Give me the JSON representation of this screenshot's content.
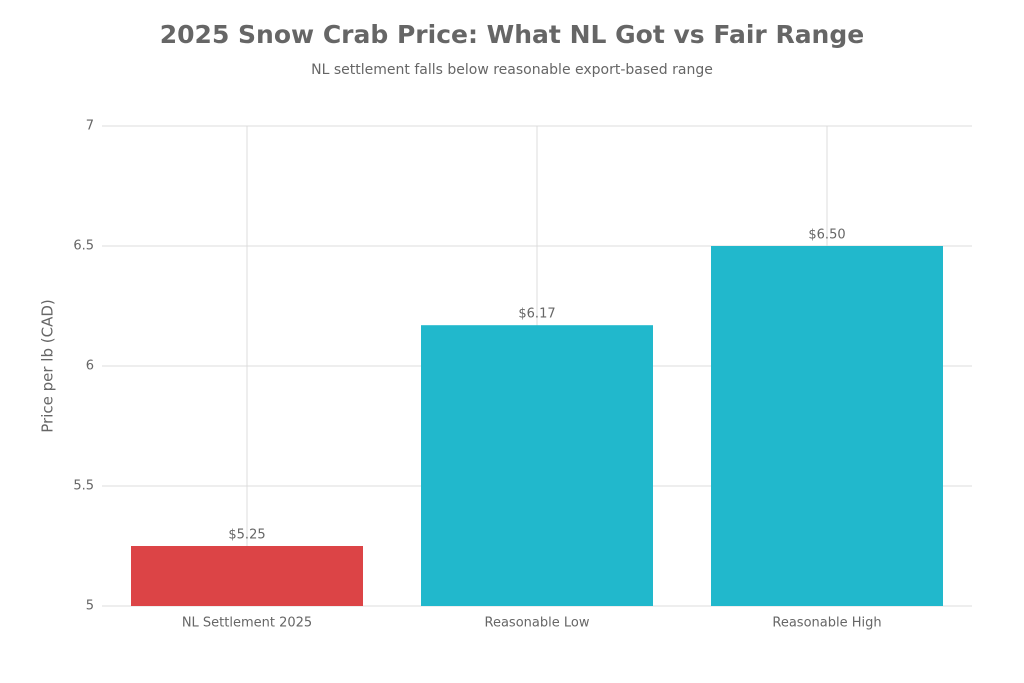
{
  "chart_data": {
    "type": "bar",
    "title": "2025 Snow Crab Price: What NL Got vs Fair Range",
    "subtitle": "NL settlement falls below reasonable export-based range",
    "y_label": "Price per lb (CAD)",
    "categories": [
      "NL Settlement 2025",
      "Reasonable Low",
      "Reasonable High"
    ],
    "values": [
      5.25,
      6.17,
      6.5
    ],
    "value_labels": [
      "$5.25",
      "$6.17",
      "$6.50"
    ],
    "colors": [
      "#dc4446",
      "#21b8cc",
      "#21b8cc"
    ],
    "ylim": [
      5,
      7
    ],
    "yticks": [
      5,
      5.5,
      6,
      6.5,
      7
    ],
    "grid": true
  }
}
